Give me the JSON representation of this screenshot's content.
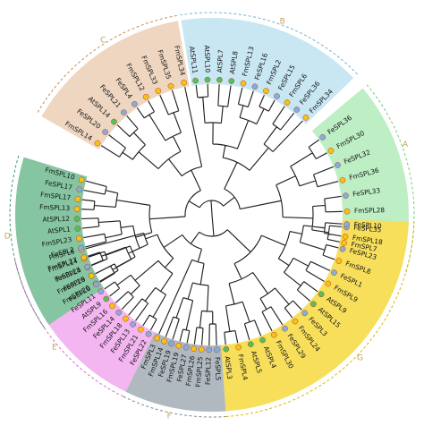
{
  "colors": {
    "A": "#bdeec4",
    "B": "#c9e7f3",
    "C": "#eed6c0",
    "D": "#86c5a1",
    "E": "#f3b6f1",
    "F": "#b1b9c0",
    "G": "#f7df5c",
    "dot_Fm": "#f4c316",
    "dot_Fe": "#7fb0de",
    "dot_At": "#4fc35a",
    "dot_stroke": "#c0392b"
  },
  "clades": [
    {
      "letter": "A",
      "genes": [
        "FeSPL36",
        "FmSPL30",
        "FeSPL32",
        "FmSPL36",
        "FeSPL33",
        "FmSPL28",
        "FeSPL35",
        "FmSPL7"
      ]
    },
    {
      "letter": "G",
      "genes": [
        "FeSPL10",
        "FmSPL18",
        "FeSPL23",
        "FmSPL8",
        "FeSPL1",
        "FmSPL9",
        "AtSPL9",
        "AtSPL15",
        "FeSPL3",
        "FmSPL24",
        "FeSPL29",
        "FmSPL30",
        "AtSPL4",
        "AtSPL5",
        "FmSPL4",
        "AtSPL3"
      ]
    },
    {
      "letter": "F",
      "genes": [
        "FeSPL5",
        "FeSPL12",
        "FmSPL25",
        "FmSPL26",
        "FeSPL27",
        "FmSPL19",
        "FeSPL19",
        "FmSPL14",
        "FmSPL3"
      ]
    },
    {
      "letter": "E",
      "genes": [
        "FeSPL22",
        "FmSPL21",
        "FeSPL13",
        "FmSPL18",
        "FeSPL14",
        "FmSPL16",
        "AtSPL9",
        "FeSPL11",
        "FmSPL20",
        "FeSPL9",
        "FmSPL4",
        "FmSPL14",
        "FmSPL6"
      ]
    },
    {
      "letter": "D",
      "genes": [
        "FeSPL6",
        "FmSPL26",
        "FeSPL25",
        "FmSPL27",
        "FeSPL2",
        "FmSPL23",
        "AtSPL1",
        "AtSPL12",
        "FmSPL13",
        "FmSPL17",
        "FeSPL17",
        "FmSPL10"
      ]
    },
    {
      "letter": "C",
      "genes": [
        "FmSPL14",
        "FeSPL20",
        "AtSPL14",
        "FeSPL21",
        "FeSPL4",
        "FmSPL12",
        "FmSPL33",
        "FmSPL35",
        "FmSPL34"
      ]
    },
    {
      "letter": "B",
      "genes": [
        "AtSPL11",
        "AtSPL10",
        "AtSPL7",
        "AtSPL8",
        "FmSPL13",
        "FeSPL16",
        "FmSPL2",
        "FeSPL15",
        "FmSPL6",
        "FeSPL36",
        "FmSPL34"
      ]
    }
  ]
}
